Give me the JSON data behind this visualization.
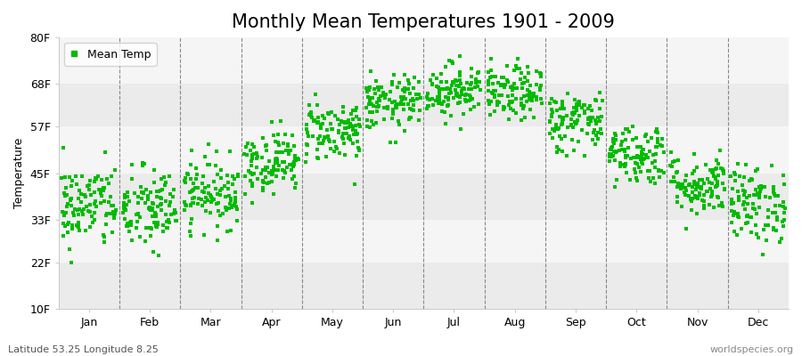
{
  "title": "Monthly Mean Temperatures 1901 - 2009",
  "ylabel": "Temperature",
  "xlabel_labels": [
    "Jan",
    "Feb",
    "Mar",
    "Apr",
    "May",
    "Jun",
    "Jul",
    "Aug",
    "Sep",
    "Oct",
    "Nov",
    "Dec"
  ],
  "ytick_values": [
    10,
    22,
    33,
    45,
    57,
    68,
    80
  ],
  "ytick_labels": [
    "10F",
    "22F",
    "33F",
    "45F",
    "57F",
    "68F",
    "80F"
  ],
  "ylim": [
    10,
    80
  ],
  "dot_color": "#00bb00",
  "dot_size": 8,
  "background_color": "#ffffff",
  "plot_bg_color": "#f5f5f5",
  "band_colors": [
    "#ebebeb",
    "#f5f5f5"
  ],
  "title_fontsize": 15,
  "axis_fontsize": 9,
  "footer_left": "Latitude 53.25 Longitude 8.25",
  "footer_right": "worldspecies.org",
  "legend_label": "Mean Temp",
  "n_years": 109,
  "monthly_means_F": [
    36.5,
    35.5,
    40.0,
    48.0,
    56.0,
    63.0,
    66.5,
    65.5,
    58.5,
    50.0,
    42.0,
    37.0
  ],
  "monthly_stds_F": [
    5.5,
    5.5,
    4.5,
    4.0,
    4.0,
    3.5,
    3.5,
    3.5,
    4.0,
    4.0,
    4.0,
    5.0
  ],
  "vline_positions": [
    1,
    2,
    3,
    4,
    5,
    6,
    7,
    8,
    9,
    10,
    11
  ],
  "xlim": [
    0,
    12
  ]
}
